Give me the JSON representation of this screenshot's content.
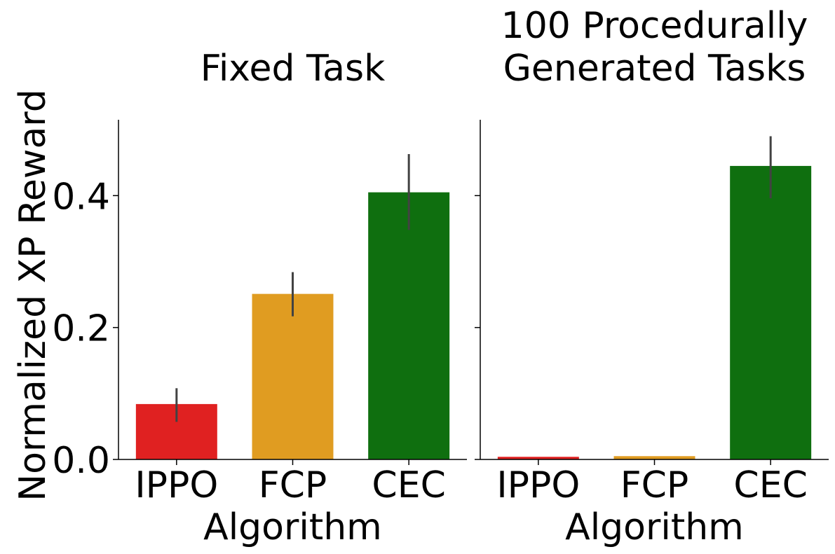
{
  "chart_data": {
    "type": "bar",
    "ylabel": "Normalized XP Reward",
    "ylim": [
      0.0,
      0.515
    ],
    "yticks": [
      "0.0",
      "0.2",
      "0.4"
    ],
    "shared_y": true,
    "grid": false,
    "panels": [
      {
        "title_lines": [
          "Fixed Task"
        ],
        "xlabel": "Algorithm",
        "categories": [
          "IPPO",
          "FCP",
          "CEC"
        ],
        "values": [
          0.084,
          0.251,
          0.405
        ],
        "error_low": [
          0.057,
          0.217,
          0.348
        ],
        "error_high": [
          0.108,
          0.284,
          0.463
        ],
        "colors": [
          "#e02121",
          "#e09c21",
          "#0f6f0f"
        ]
      },
      {
        "title_lines": [
          "100 Procedurally",
          "Generated Tasks"
        ],
        "xlabel": "Algorithm",
        "categories": [
          "IPPO",
          "FCP",
          "CEC"
        ],
        "values": [
          0.004,
          0.005,
          0.445
        ],
        "error_low": [
          0.004,
          0.005,
          0.396
        ],
        "error_high": [
          0.004,
          0.005,
          0.49
        ],
        "colors": [
          "#e02121",
          "#e09c21",
          "#0f6f0f"
        ]
      }
    ]
  }
}
